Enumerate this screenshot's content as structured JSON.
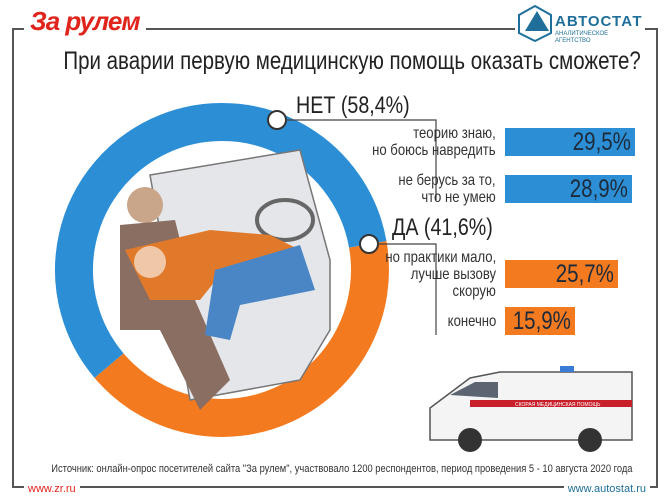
{
  "brand_left": "За рулем",
  "brand_right": {
    "name": "АВТОСТАТ",
    "sub": "АНАЛИТИЧЕСКОЕ АГЕНТСТВО"
  },
  "chart_data": {
    "type": "bar",
    "title": "При аварии первую медицинскую помощь оказать сможете?",
    "groups": [
      {
        "label": "НЕТ (58,4%)",
        "value": 58.4,
        "color": "#2c8fd6",
        "items": [
          {
            "label": "теорию знаю, но боюсь навредить",
            "lines": [
              "теорию знаю,",
              "но боюсь навредить"
            ],
            "value": 29.5,
            "value_label": "29,5%"
          },
          {
            "label": "не берусь за то, что не умею",
            "lines": [
              "не берусь за то,",
              "что не умею"
            ],
            "value": 28.9,
            "value_label": "28,9%"
          }
        ]
      },
      {
        "label": "ДА (41,6%)",
        "value": 41.6,
        "color": "#f47a20",
        "items": [
          {
            "label": "но практики мало, лучше вызову скорую",
            "lines": [
              "но практики мало,",
              "лучше вызову",
              "скорую"
            ],
            "value": 25.7,
            "value_label": "25,7%"
          },
          {
            "label": "конечно",
            "lines": [
              "конечно"
            ],
            "value": 15.9,
            "value_label": "15,9%"
          }
        ]
      }
    ]
  },
  "ambulance_text": "СКОРАЯ МЕДИЦИНСКАЯ ПОМОЩЬ",
  "source": "Источник: онлайн-опрос посетителей сайта \"За рулем\", участвовало 1200 респондентов, период проведения 5 - 10 августа 2020 года",
  "footer_left": "www.zr.ru",
  "footer_right": "www.autostat.ru"
}
